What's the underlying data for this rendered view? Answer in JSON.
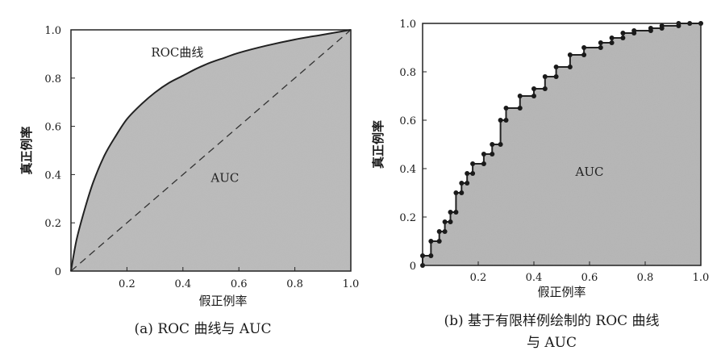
{
  "chart_data": [
    {
      "type": "area",
      "caption": "(a) ROC 曲线与 AUC",
      "xlabel": "假正例率",
      "ylabel": "真正例率",
      "x_ticks": [
        "0.2",
        "0.4",
        "0.6",
        "0.8",
        "1.0"
      ],
      "y_ticks": [
        "0",
        "0.2",
        "0.4",
        "0.6",
        "0.8",
        "1.0"
      ],
      "origin_label": "0",
      "xlim": [
        0,
        1
      ],
      "ylim": [
        0,
        1
      ],
      "grid": false,
      "annotations": [
        {
          "text": "ROC曲线",
          "x": 0.38,
          "y": 0.89
        },
        {
          "text": "AUC",
          "x": 0.55,
          "y": 0.37
        }
      ],
      "series": [
        {
          "name": "ROC曲线",
          "x": [
            0,
            0.02,
            0.05,
            0.08,
            0.12,
            0.16,
            0.2,
            0.25,
            0.3,
            0.35,
            0.4,
            0.45,
            0.5,
            0.55,
            0.6,
            0.7,
            0.8,
            0.9,
            1.0
          ],
          "y": [
            0,
            0.13,
            0.26,
            0.37,
            0.48,
            0.56,
            0.63,
            0.69,
            0.74,
            0.78,
            0.81,
            0.84,
            0.865,
            0.885,
            0.905,
            0.935,
            0.96,
            0.98,
            1.0
          ]
        },
        {
          "name": "",
          "style": "dashed",
          "x": [
            0,
            1
          ],
          "y": [
            0,
            1
          ]
        }
      ]
    },
    {
      "type": "area",
      "caption_lines": [
        "(b) 基于有限样例绘制的 ROC 曲线",
        "与 AUC"
      ],
      "xlabel": "假正例率",
      "ylabel": "真正例率",
      "x_ticks": [
        "0.2",
        "0.4",
        "0.6",
        "0.8",
        "1.0"
      ],
      "y_ticks": [
        "0",
        "0.2",
        "0.4",
        "0.6",
        "0.8",
        "1.0"
      ],
      "xlim": [
        0,
        1
      ],
      "ylim": [
        0,
        1
      ],
      "grid": false,
      "annotations": [
        {
          "text": "AUC",
          "x": 0.6,
          "y": 0.37
        }
      ],
      "series": [
        {
          "name": "",
          "step": "tpr_then_fpr",
          "x": [
            0,
            0,
            0.03,
            0.03,
            0.06,
            0.06,
            0.08,
            0.08,
            0.1,
            0.1,
            0.12,
            0.12,
            0.14,
            0.14,
            0.16,
            0.16,
            0.18,
            0.18,
            0.22,
            0.22,
            0.25,
            0.25,
            0.28,
            0.28,
            0.3,
            0.3,
            0.35,
            0.35,
            0.4,
            0.4,
            0.44,
            0.44,
            0.48,
            0.48,
            0.53,
            0.53,
            0.58,
            0.58,
            0.64,
            0.64,
            0.68,
            0.68,
            0.72,
            0.72,
            0.76,
            0.76,
            0.82,
            0.82,
            0.86,
            0.86,
            0.92,
            0.92,
            0.96,
            1.0
          ],
          "y": [
            0,
            0.04,
            0.04,
            0.1,
            0.1,
            0.14,
            0.14,
            0.18,
            0.18,
            0.22,
            0.22,
            0.3,
            0.3,
            0.34,
            0.34,
            0.38,
            0.38,
            0.42,
            0.42,
            0.46,
            0.46,
            0.5,
            0.5,
            0.6,
            0.6,
            0.65,
            0.65,
            0.7,
            0.7,
            0.73,
            0.73,
            0.78,
            0.78,
            0.82,
            0.82,
            0.87,
            0.87,
            0.9,
            0.9,
            0.92,
            0.92,
            0.94,
            0.94,
            0.96,
            0.96,
            0.97,
            0.97,
            0.98,
            0.98,
            0.99,
            0.99,
            1.0,
            1.0,
            1.0
          ]
        }
      ]
    }
  ]
}
